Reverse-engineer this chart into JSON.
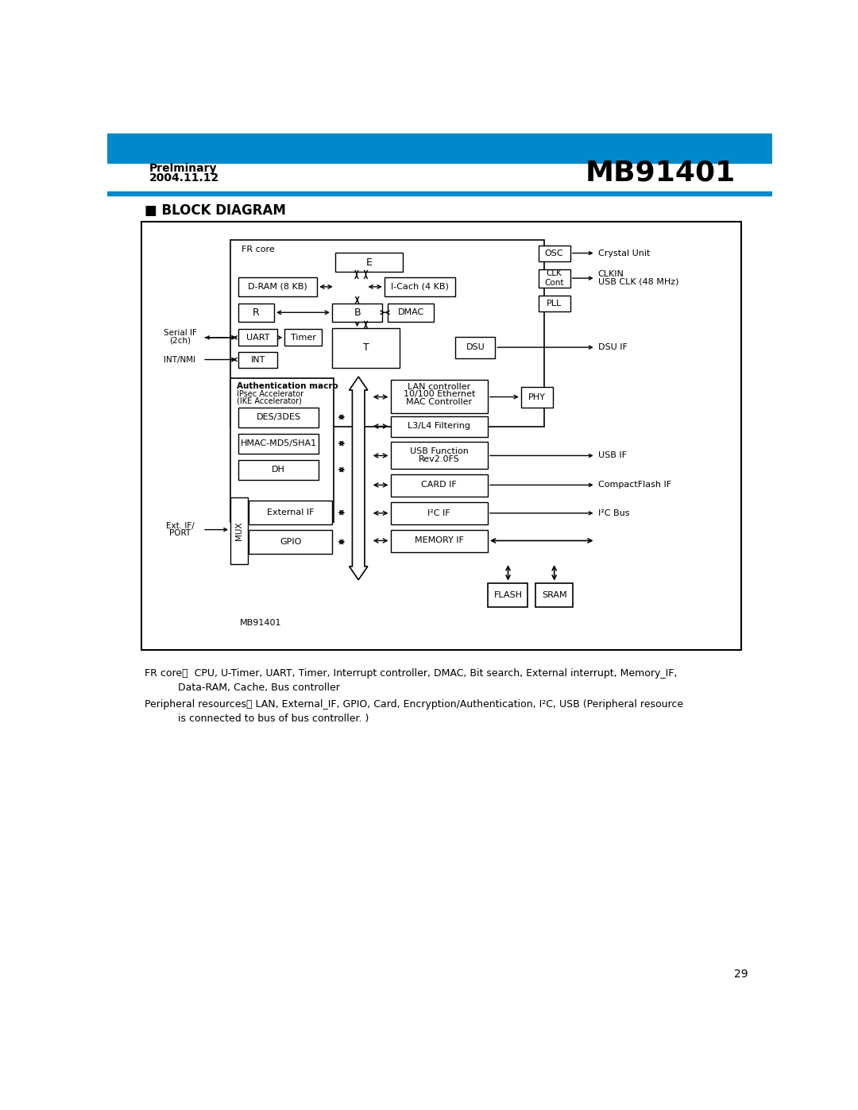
{
  "header_bg_color": "#0088CC",
  "header_text_left1": "Prelminary",
  "header_text_left2": "2004.11.12",
  "header_text_right": "MB91401",
  "section_title": "■ BLOCK DIAGRAM",
  "footer_note1_label": "FR core：",
  "footer_note1_text": " CPU, U-Timer, UART, Timer, Interrupt controller, DMAC, Bit search, External interrupt, Memory_IF,",
  "footer_note1_text2": "Data-RAM, Cache, Bus controller",
  "footer_note2_label": "Peripheral resources：",
  "footer_note2_text": " LAN, External_IF, GPIO, Card, Encryption/Authentication, I²C, USB (Peripheral resource",
  "footer_note2_text2": "is connected to bus of bus controller. )",
  "page_number": "29",
  "blue_bar_color": "#0088CC"
}
